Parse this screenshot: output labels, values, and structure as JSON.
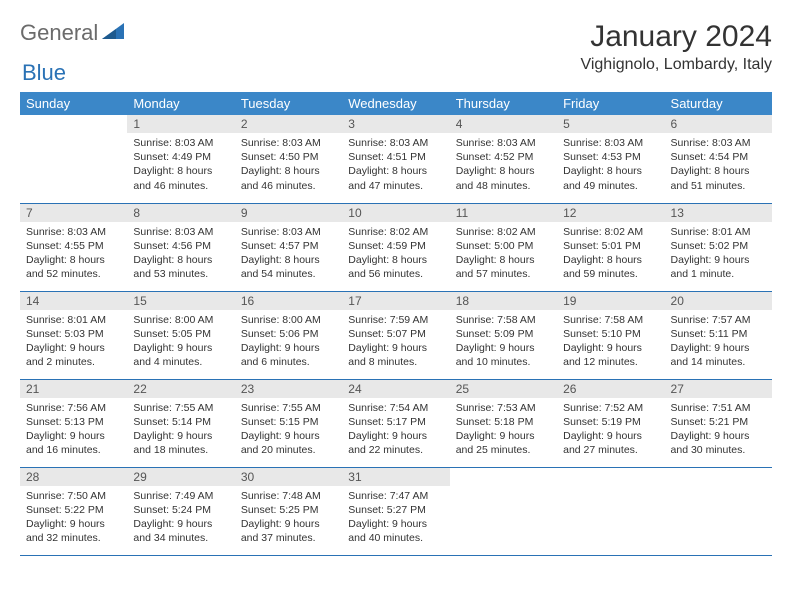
{
  "logo": {
    "part1": "General",
    "part2": "Blue"
  },
  "header": {
    "month_title": "January 2024",
    "location": "Vighignolo, Lombardy, Italy"
  },
  "colors": {
    "header_bg": "#3b87c8",
    "header_text": "#ffffff",
    "daynum_bg": "#e8e8e8",
    "border": "#2a72b5",
    "logo_gray": "#6b6b6b",
    "logo_blue": "#2a72b5",
    "body_text": "#333333"
  },
  "weekdays": [
    "Sunday",
    "Monday",
    "Tuesday",
    "Wednesday",
    "Thursday",
    "Friday",
    "Saturday"
  ],
  "weeks": [
    [
      {
        "n": "",
        "sr": "",
        "ss": "",
        "dl": ""
      },
      {
        "n": "1",
        "sr": "Sunrise: 8:03 AM",
        "ss": "Sunset: 4:49 PM",
        "dl": "Daylight: 8 hours and 46 minutes."
      },
      {
        "n": "2",
        "sr": "Sunrise: 8:03 AM",
        "ss": "Sunset: 4:50 PM",
        "dl": "Daylight: 8 hours and 46 minutes."
      },
      {
        "n": "3",
        "sr": "Sunrise: 8:03 AM",
        "ss": "Sunset: 4:51 PM",
        "dl": "Daylight: 8 hours and 47 minutes."
      },
      {
        "n": "4",
        "sr": "Sunrise: 8:03 AM",
        "ss": "Sunset: 4:52 PM",
        "dl": "Daylight: 8 hours and 48 minutes."
      },
      {
        "n": "5",
        "sr": "Sunrise: 8:03 AM",
        "ss": "Sunset: 4:53 PM",
        "dl": "Daylight: 8 hours and 49 minutes."
      },
      {
        "n": "6",
        "sr": "Sunrise: 8:03 AM",
        "ss": "Sunset: 4:54 PM",
        "dl": "Daylight: 8 hours and 51 minutes."
      }
    ],
    [
      {
        "n": "7",
        "sr": "Sunrise: 8:03 AM",
        "ss": "Sunset: 4:55 PM",
        "dl": "Daylight: 8 hours and 52 minutes."
      },
      {
        "n": "8",
        "sr": "Sunrise: 8:03 AM",
        "ss": "Sunset: 4:56 PM",
        "dl": "Daylight: 8 hours and 53 minutes."
      },
      {
        "n": "9",
        "sr": "Sunrise: 8:03 AM",
        "ss": "Sunset: 4:57 PM",
        "dl": "Daylight: 8 hours and 54 minutes."
      },
      {
        "n": "10",
        "sr": "Sunrise: 8:02 AM",
        "ss": "Sunset: 4:59 PM",
        "dl": "Daylight: 8 hours and 56 minutes."
      },
      {
        "n": "11",
        "sr": "Sunrise: 8:02 AM",
        "ss": "Sunset: 5:00 PM",
        "dl": "Daylight: 8 hours and 57 minutes."
      },
      {
        "n": "12",
        "sr": "Sunrise: 8:02 AM",
        "ss": "Sunset: 5:01 PM",
        "dl": "Daylight: 8 hours and 59 minutes."
      },
      {
        "n": "13",
        "sr": "Sunrise: 8:01 AM",
        "ss": "Sunset: 5:02 PM",
        "dl": "Daylight: 9 hours and 1 minute."
      }
    ],
    [
      {
        "n": "14",
        "sr": "Sunrise: 8:01 AM",
        "ss": "Sunset: 5:03 PM",
        "dl": "Daylight: 9 hours and 2 minutes."
      },
      {
        "n": "15",
        "sr": "Sunrise: 8:00 AM",
        "ss": "Sunset: 5:05 PM",
        "dl": "Daylight: 9 hours and 4 minutes."
      },
      {
        "n": "16",
        "sr": "Sunrise: 8:00 AM",
        "ss": "Sunset: 5:06 PM",
        "dl": "Daylight: 9 hours and 6 minutes."
      },
      {
        "n": "17",
        "sr": "Sunrise: 7:59 AM",
        "ss": "Sunset: 5:07 PM",
        "dl": "Daylight: 9 hours and 8 minutes."
      },
      {
        "n": "18",
        "sr": "Sunrise: 7:58 AM",
        "ss": "Sunset: 5:09 PM",
        "dl": "Daylight: 9 hours and 10 minutes."
      },
      {
        "n": "19",
        "sr": "Sunrise: 7:58 AM",
        "ss": "Sunset: 5:10 PM",
        "dl": "Daylight: 9 hours and 12 minutes."
      },
      {
        "n": "20",
        "sr": "Sunrise: 7:57 AM",
        "ss": "Sunset: 5:11 PM",
        "dl": "Daylight: 9 hours and 14 minutes."
      }
    ],
    [
      {
        "n": "21",
        "sr": "Sunrise: 7:56 AM",
        "ss": "Sunset: 5:13 PM",
        "dl": "Daylight: 9 hours and 16 minutes."
      },
      {
        "n": "22",
        "sr": "Sunrise: 7:55 AM",
        "ss": "Sunset: 5:14 PM",
        "dl": "Daylight: 9 hours and 18 minutes."
      },
      {
        "n": "23",
        "sr": "Sunrise: 7:55 AM",
        "ss": "Sunset: 5:15 PM",
        "dl": "Daylight: 9 hours and 20 minutes."
      },
      {
        "n": "24",
        "sr": "Sunrise: 7:54 AM",
        "ss": "Sunset: 5:17 PM",
        "dl": "Daylight: 9 hours and 22 minutes."
      },
      {
        "n": "25",
        "sr": "Sunrise: 7:53 AM",
        "ss": "Sunset: 5:18 PM",
        "dl": "Daylight: 9 hours and 25 minutes."
      },
      {
        "n": "26",
        "sr": "Sunrise: 7:52 AM",
        "ss": "Sunset: 5:19 PM",
        "dl": "Daylight: 9 hours and 27 minutes."
      },
      {
        "n": "27",
        "sr": "Sunrise: 7:51 AM",
        "ss": "Sunset: 5:21 PM",
        "dl": "Daylight: 9 hours and 30 minutes."
      }
    ],
    [
      {
        "n": "28",
        "sr": "Sunrise: 7:50 AM",
        "ss": "Sunset: 5:22 PM",
        "dl": "Daylight: 9 hours and 32 minutes."
      },
      {
        "n": "29",
        "sr": "Sunrise: 7:49 AM",
        "ss": "Sunset: 5:24 PM",
        "dl": "Daylight: 9 hours and 34 minutes."
      },
      {
        "n": "30",
        "sr": "Sunrise: 7:48 AM",
        "ss": "Sunset: 5:25 PM",
        "dl": "Daylight: 9 hours and 37 minutes."
      },
      {
        "n": "31",
        "sr": "Sunrise: 7:47 AM",
        "ss": "Sunset: 5:27 PM",
        "dl": "Daylight: 9 hours and 40 minutes."
      },
      {
        "n": "",
        "sr": "",
        "ss": "",
        "dl": ""
      },
      {
        "n": "",
        "sr": "",
        "ss": "",
        "dl": ""
      },
      {
        "n": "",
        "sr": "",
        "ss": "",
        "dl": ""
      }
    ]
  ]
}
